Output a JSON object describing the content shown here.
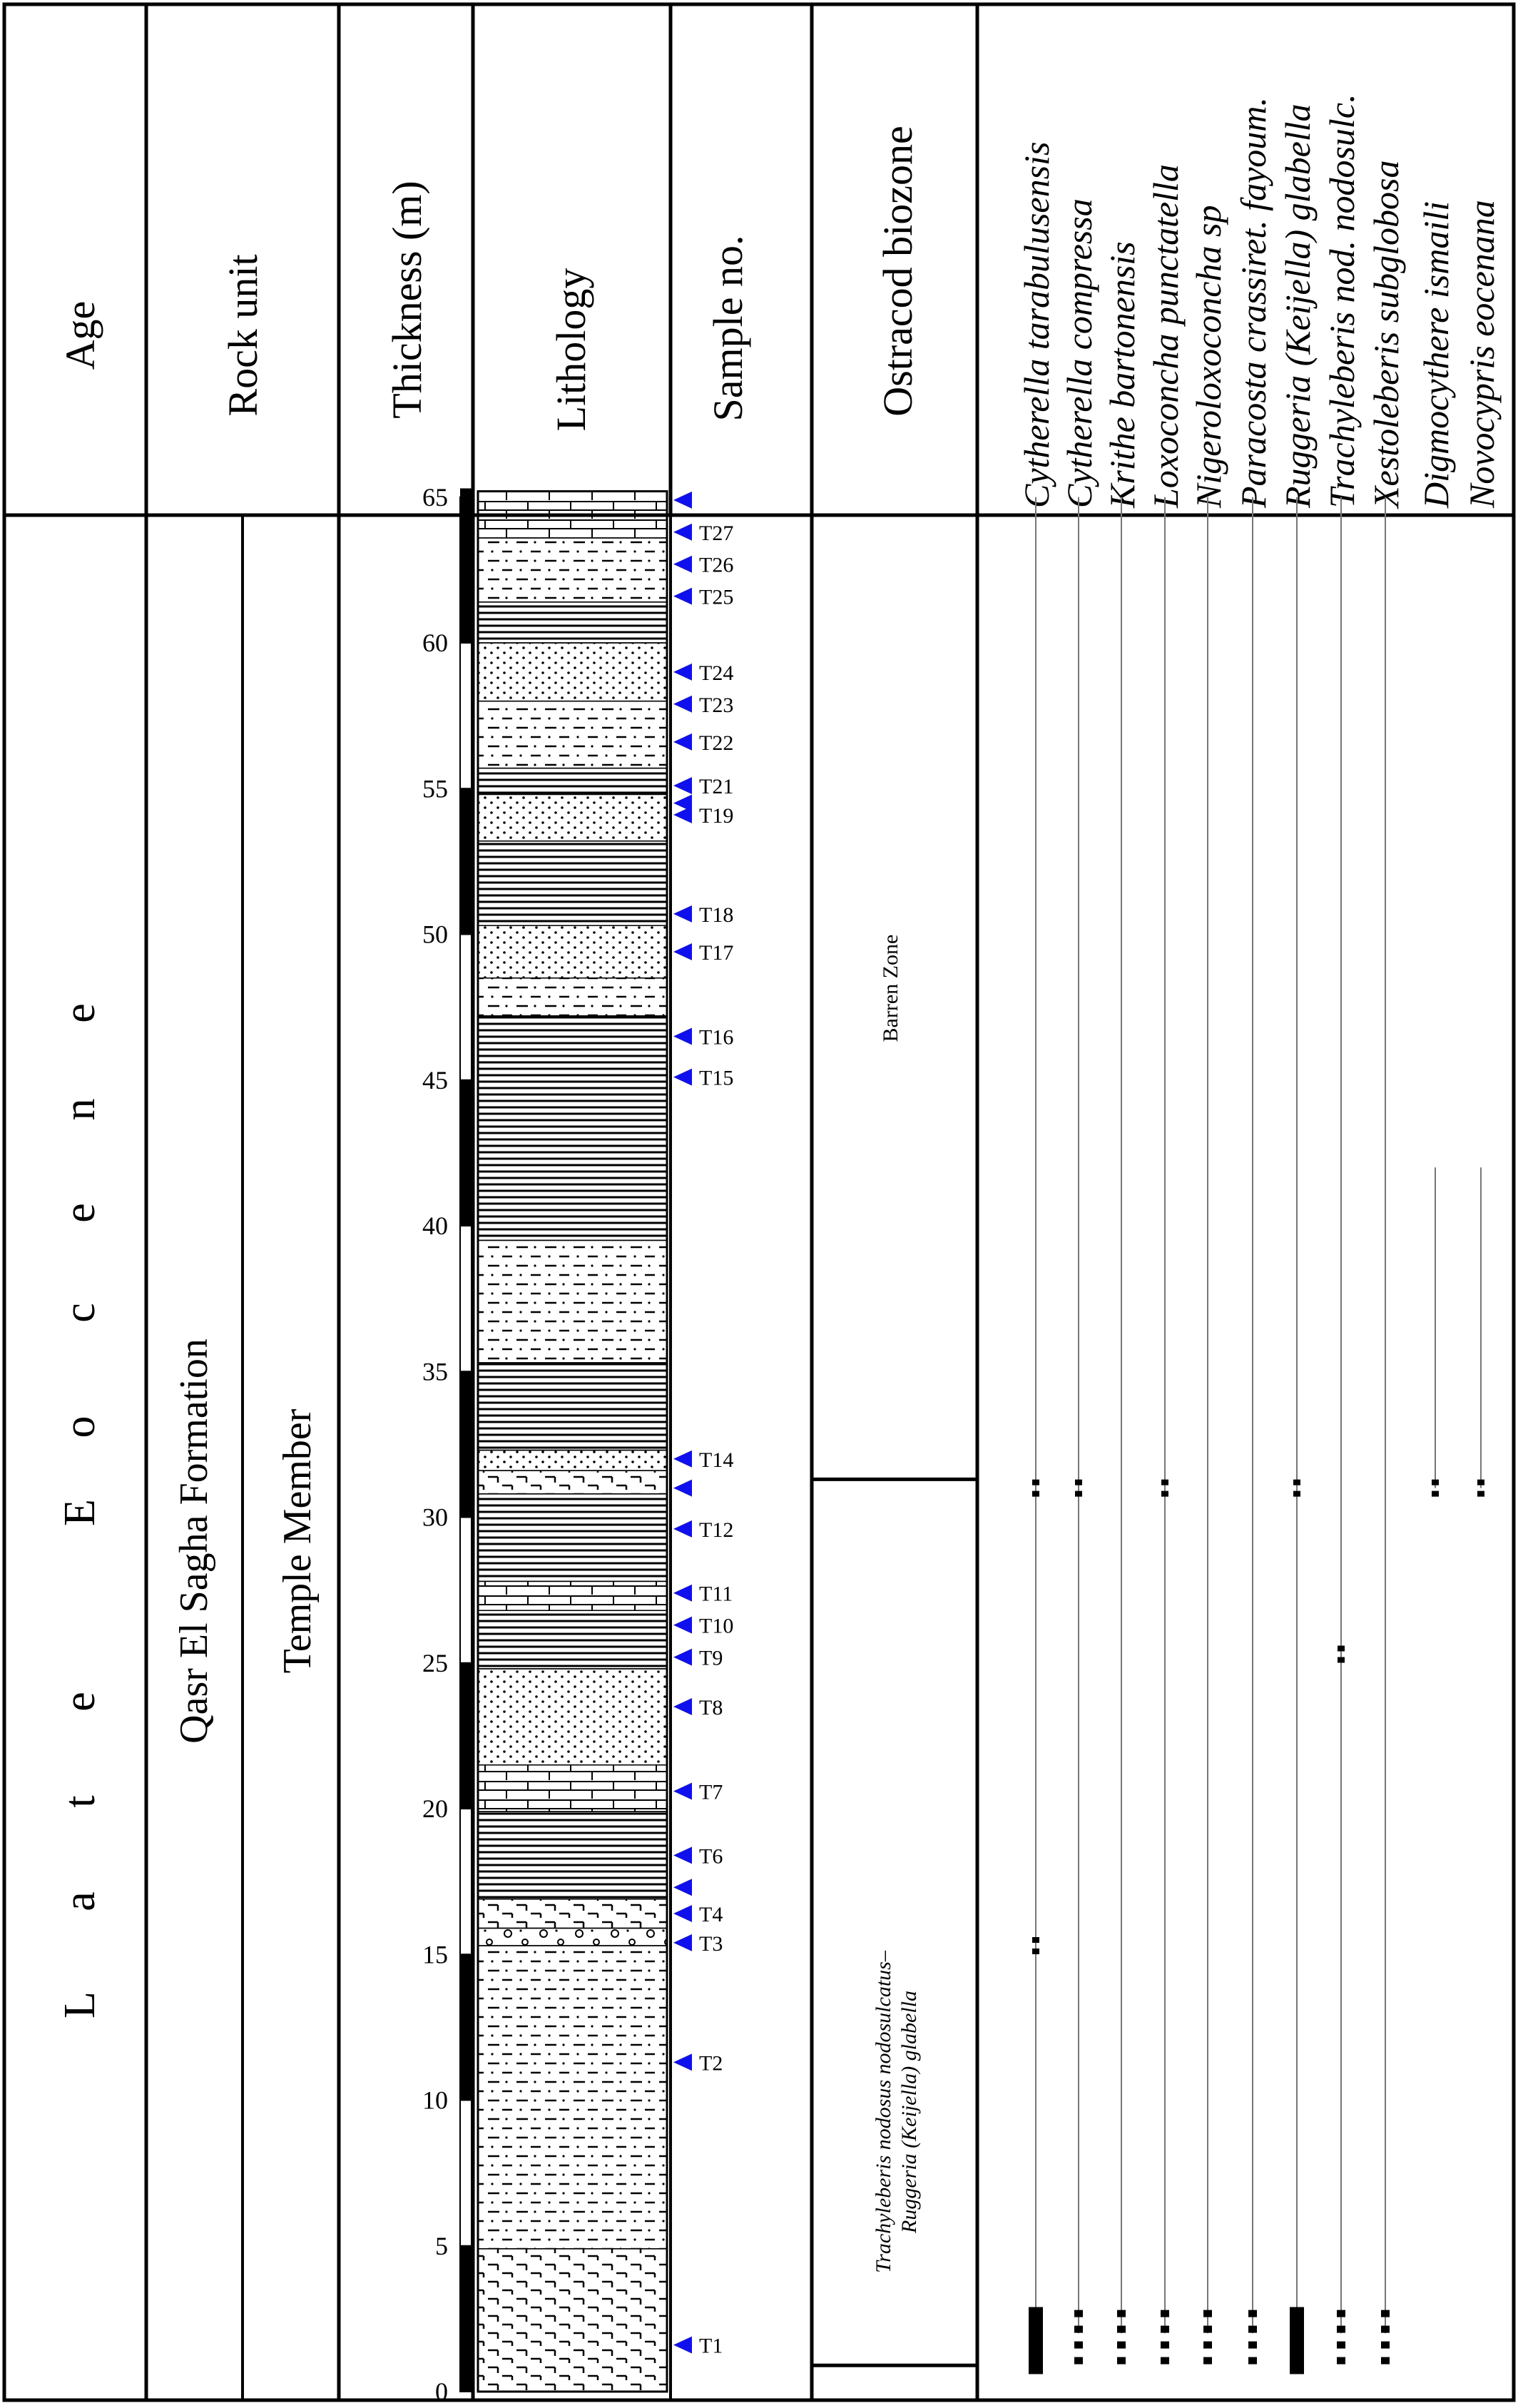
{
  "headers": {
    "age": "Age",
    "rock_unit": "Rock unit",
    "thickness": "Thickness (m)",
    "lithology": "Lithology",
    "sample_no": "Sample no.",
    "biozone": "Ostracod biozone"
  },
  "age_label": "L a t e   E o c e n e",
  "age_letters": [
    "L",
    "a",
    "t",
    "e",
    "E",
    "o",
    "c",
    "e",
    "n",
    "e"
  ],
  "formation": "Qasr El Sagha Formation",
  "member": "Temple Member",
  "thickness_ticks": [
    "0",
    "5",
    "10",
    "15",
    "20",
    "25",
    "30",
    "35",
    "40",
    "45",
    "50",
    "55",
    "60",
    "65"
  ],
  "samples": [
    {
      "label": "T1",
      "m": 1.6
    },
    {
      "label": "T2",
      "m": 11.3
    },
    {
      "label": "T3",
      "m": 15.4
    },
    {
      "label": "T4",
      "m": 16.4
    },
    {
      "label": "",
      "m": 17.3
    },
    {
      "label": "T6",
      "m": 18.4
    },
    {
      "label": "T7",
      "m": 20.6
    },
    {
      "label": "T8",
      "m": 23.5
    },
    {
      "label": "T9",
      "m": 25.2
    },
    {
      "label": "T10",
      "m": 26.3
    },
    {
      "label": "T11",
      "m": 27.4
    },
    {
      "label": "T12",
      "m": 29.6
    },
    {
      "label": "",
      "m": 31.0
    },
    {
      "label": "T14",
      "m": 32.0
    },
    {
      "label": "T15",
      "m": 45.1
    },
    {
      "label": "T16",
      "m": 46.5
    },
    {
      "label": "T17",
      "m": 49.4
    },
    {
      "label": "T18",
      "m": 50.7
    },
    {
      "label": "T19",
      "m": 54.1
    },
    {
      "label": "",
      "m": 54.5
    },
    {
      "label": "T21",
      "m": 55.1
    },
    {
      "label": "T22",
      "m": 56.6
    },
    {
      "label": "T23",
      "m": 57.9
    },
    {
      "label": "T24",
      "m": 59.0
    },
    {
      "label": "T25",
      "m": 61.6
    },
    {
      "label": "T26",
      "m": 62.7
    },
    {
      "label": "T27",
      "m": 63.8
    },
    {
      "label": "",
      "m": 64.9
    }
  ],
  "biozones": [
    {
      "name": "Barren Zone",
      "italic": false,
      "from_m": 31.3,
      "to_m": 65.0
    },
    {
      "name_line1": "Trachyleberis nodosus nodosulcatus–",
      "name_line2": "Ruggeria (Keijella) glabella",
      "italic": true,
      "from_m": 0.9,
      "to_m": 31.3
    }
  ],
  "species": [
    {
      "name": "Cytherella tarabulusensis",
      "occurrences": [
        31.0,
        15.3,
        2.0
      ]
    },
    {
      "name": "Cytherella compressa",
      "occurrences": [
        31.0,
        2.0
      ]
    },
    {
      "name": "Krithe bartonensis",
      "occurrences": [
        2.0
      ]
    },
    {
      "name": "Loxoconcha punctatella",
      "occurrences": [
        31.0,
        2.0
      ]
    },
    {
      "name": "Nigeroloxoconcha sp",
      "occurrences": [
        2.0
      ]
    },
    {
      "name": "Paracosta crassiret. fayoum.",
      "occurrences": [
        2.0
      ]
    },
    {
      "name": "Ruggeria (Keijella) glabella",
      "occurrences": [
        31.0,
        2.0
      ]
    },
    {
      "name": "Trachyleberis nod. nodosulc.",
      "occurrences": [
        25.3,
        2.0
      ]
    },
    {
      "name": "Xestoleberis subglobosa",
      "occurrences": [
        2.0
      ]
    },
    {
      "name": "Digmocythere ismaili",
      "occurrences": [
        31.0
      ]
    },
    {
      "name": "Novocypris eocenana",
      "occurrences": [
        31.0
      ]
    }
  ],
  "colors": {
    "ink": "#000000",
    "marker": "#1010ee",
    "range_line": "#777777"
  }
}
